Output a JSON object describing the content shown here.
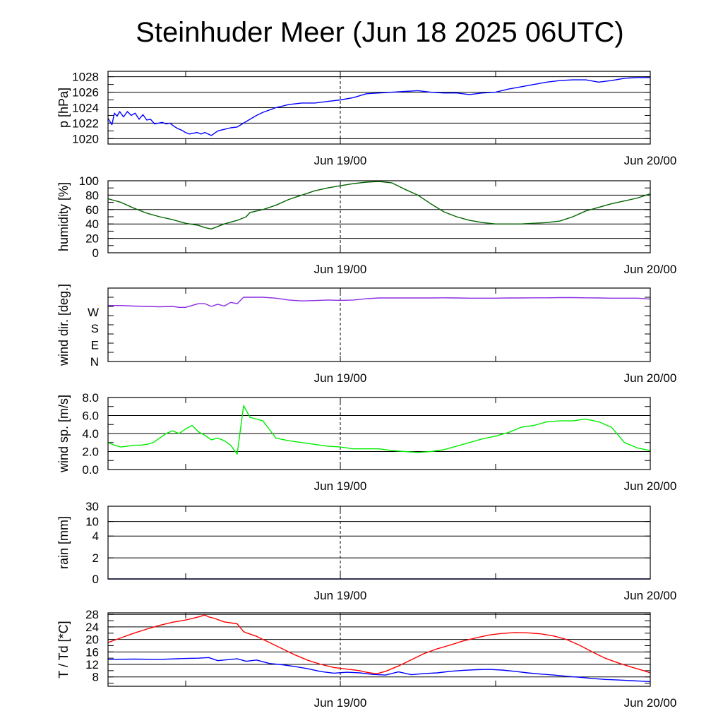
{
  "title": "Steinhuder Meer (Jun 18 2025 06UTC)",
  "x_axis": {
    "ticks": [
      "Jun 19/00",
      "Jun 20/00"
    ],
    "range_hours": [
      0,
      42
    ]
  },
  "chart_data": [
    {
      "type": "line",
      "ylabel": "p [hPa]",
      "ylim": [
        1019.3,
        1028.7
      ],
      "yticks": [
        "1020",
        "1022",
        "1024",
        "1026",
        "1028"
      ],
      "grid": true,
      "series": [
        {
          "color": "#0000ff",
          "x": [
            0,
            0.3,
            0.5,
            0.7,
            0.9,
            1.2,
            1.5,
            1.8,
            2.1,
            2.4,
            2.7,
            3.0,
            3.3,
            3.6,
            3.9,
            4.2,
            4.5,
            4.8,
            5.1,
            5.4,
            5.7,
            6.0,
            6.3,
            6.6,
            6.9,
            7.2,
            7.5,
            8,
            8.5,
            9,
            9.5,
            10,
            10.5,
            11,
            11.5,
            12,
            13,
            14,
            15,
            16,
            17,
            18,
            19,
            20,
            21,
            22,
            23,
            24,
            25,
            26,
            27,
            28,
            29,
            30,
            31,
            32,
            33,
            34,
            35,
            36,
            37,
            38,
            39,
            40,
            41,
            42
          ],
          "values": [
            1022.6,
            1021.8,
            1023.3,
            1022.9,
            1023.5,
            1022.8,
            1023.5,
            1023.0,
            1023.3,
            1022.5,
            1023.1,
            1022.4,
            1022.5,
            1021.9,
            1022.0,
            1022.1,
            1021.9,
            1022.0,
            1021.6,
            1021.3,
            1021.1,
            1020.8,
            1020.6,
            1020.7,
            1020.8,
            1020.6,
            1020.8,
            1020.4,
            1021.0,
            1021.2,
            1021.4,
            1021.5,
            1022.0,
            1022.5,
            1023.0,
            1023.4,
            1024.0,
            1024.4,
            1024.6,
            1024.6,
            1024.8,
            1025.0,
            1025.3,
            1025.8,
            1025.9,
            1026.0,
            1026.1,
            1026.2,
            1026.0,
            1025.9,
            1025.9,
            1025.7,
            1025.9,
            1026.0,
            1026.4,
            1026.7,
            1027.0,
            1027.3,
            1027.5,
            1027.6,
            1027.6,
            1027.3,
            1027.5,
            1027.8,
            1027.9,
            1027.9
          ]
        }
      ]
    },
    {
      "type": "line",
      "ylabel": "humidity [%]",
      "ylim": [
        0,
        100
      ],
      "yticks": [
        "0",
        "20",
        "40",
        "60",
        "80",
        "100"
      ],
      "grid": true,
      "series": [
        {
          "color": "#006400",
          "x": [
            0,
            1,
            2,
            3,
            4,
            5,
            6,
            7,
            7.5,
            8,
            9,
            10,
            10.7,
            11,
            12,
            13,
            14,
            15,
            16,
            17,
            18,
            19,
            20,
            21,
            22,
            23,
            24,
            25,
            26,
            27,
            28,
            29,
            30,
            31,
            32,
            33,
            34,
            35,
            36,
            37,
            38,
            39,
            40,
            41,
            42
          ],
          "values": [
            75,
            70,
            62,
            55,
            50,
            46,
            41,
            38,
            35,
            33,
            40,
            45,
            50,
            56,
            60,
            66,
            74,
            80,
            86,
            90,
            93,
            96,
            98,
            99,
            97,
            88,
            80,
            68,
            57,
            50,
            45,
            42,
            40,
            40,
            40,
            41,
            42,
            44,
            50,
            58,
            63,
            68,
            72,
            76,
            82
          ]
        }
      ]
    },
    {
      "type": "line",
      "ylabel": "wind dir. [deg.]",
      "ylim": [
        0,
        400
      ],
      "yticks": [
        "N",
        "E",
        "S",
        "W"
      ],
      "ytick_values": [
        0,
        90,
        180,
        270
      ],
      "grid": false,
      "series": [
        {
          "color": "#8a2be2",
          "x": [
            0,
            1,
            2,
            3,
            4,
            5,
            5.5,
            6,
            6.5,
            7,
            7.5,
            8,
            8.5,
            9,
            9.5,
            10,
            10.5,
            11,
            12,
            13,
            14,
            15,
            16,
            17,
            18,
            19,
            20,
            21,
            22,
            23,
            24,
            25,
            26,
            27,
            28,
            29,
            30,
            31,
            32,
            33,
            34,
            35,
            36,
            37,
            38,
            39,
            40,
            41,
            42
          ],
          "values": [
            305,
            305,
            302,
            300,
            298,
            300,
            295,
            295,
            305,
            315,
            315,
            300,
            312,
            302,
            322,
            315,
            350,
            350,
            350,
            345,
            335,
            330,
            332,
            335,
            333,
            335,
            342,
            346,
            346,
            346,
            346,
            346,
            347,
            346,
            345,
            345,
            345,
            346,
            346,
            347,
            347,
            348,
            348,
            347,
            346,
            345,
            345,
            345,
            340
          ]
        }
      ]
    },
    {
      "type": "line",
      "ylabel": "wind sp. [m/s]",
      "ylim": [
        0,
        8
      ],
      "yticks": [
        "0.0",
        "2.0",
        "4.0",
        "6.0",
        "8.0"
      ],
      "grid": true,
      "series": [
        {
          "color": "#00ee00",
          "x": [
            0,
            0.5,
            1,
            1.5,
            2,
            2.5,
            3,
            3.5,
            4,
            4.5,
            5,
            5.5,
            6,
            6.5,
            7,
            7.5,
            8,
            8.5,
            9,
            9.5,
            10,
            10.5,
            11,
            12,
            13,
            14,
            15,
            16,
            17,
            18,
            19,
            20,
            21,
            22,
            23,
            24,
            25,
            26,
            27,
            28,
            29,
            30,
            31,
            32,
            33,
            34,
            35,
            36,
            37,
            38,
            39,
            40,
            41,
            42
          ],
          "values": [
            3.0,
            2.7,
            2.5,
            2.6,
            2.7,
            2.7,
            2.8,
            3.0,
            3.5,
            4.0,
            4.3,
            4.0,
            4.5,
            4.9,
            4.2,
            3.8,
            3.3,
            3.5,
            3.2,
            2.7,
            1.7,
            7.1,
            5.8,
            5.4,
            3.5,
            3.2,
            3.0,
            2.8,
            2.6,
            2.5,
            2.3,
            2.3,
            2.3,
            2.1,
            2.0,
            1.9,
            2.0,
            2.2,
            2.6,
            3.0,
            3.4,
            3.7,
            4.1,
            4.7,
            4.9,
            5.3,
            5.4,
            5.4,
            5.6,
            5.3,
            4.7,
            3.0,
            2.4,
            2.1
          ]
        }
      ]
    },
    {
      "type": "line",
      "ylabel": "rain [mm]",
      "scale": "piecewise",
      "yticks": [
        "0",
        "2",
        "4",
        "10",
        "30"
      ],
      "ytick_values": [
        0,
        2,
        4,
        10,
        30
      ],
      "grid": true,
      "series": [
        {
          "color": "#00008b",
          "x": [
            0,
            42
          ],
          "values": [
            0,
            0
          ]
        }
      ]
    },
    {
      "type": "line",
      "ylabel": "T / Td [*C]",
      "ylim": [
        5,
        28.5
      ],
      "yticks": [
        "8",
        "12",
        "16",
        "20",
        "24",
        "28"
      ],
      "grid": true,
      "series": [
        {
          "color": "#ff0000",
          "x": [
            0,
            1,
            2,
            3,
            4,
            5,
            6,
            7,
            7.5,
            7.8,
            8.2,
            9,
            10,
            10.5,
            10.8,
            11.5,
            12.5,
            13.5,
            14.5,
            15.5,
            16.5,
            17.5,
            18.5,
            19.5,
            20,
            20.8,
            21.5,
            22.5,
            23.5,
            24.5,
            25.5,
            26.5,
            27.5,
            28.5,
            29.5,
            30.5,
            31.5,
            32.5,
            33.5,
            34.5,
            35.5,
            36.5,
            37.5,
            38.5,
            39.5,
            40.5,
            41.5,
            42
          ],
          "values": [
            19.0,
            20.5,
            22.0,
            23.3,
            24.5,
            25.5,
            26.2,
            27.2,
            27.8,
            27.2,
            26.8,
            25.6,
            25.0,
            22.5,
            22.0,
            21.0,
            19.0,
            17.0,
            15.0,
            13.3,
            12.0,
            11.0,
            10.5,
            10.0,
            9.5,
            9.0,
            9.8,
            11.5,
            13.5,
            15.5,
            17.0,
            18.2,
            19.5,
            20.5,
            21.4,
            21.9,
            22.2,
            22.1,
            21.8,
            21.1,
            20.0,
            18.2,
            16.0,
            14.0,
            12.5,
            11.2,
            10.0,
            9.3
          ]
        },
        {
          "color": "#0000ff",
          "x": [
            0,
            2,
            4,
            6,
            7,
            7.8,
            8.5,
            10,
            10.7,
            11.5,
            12.5,
            13.5,
            14.5,
            15.5,
            16.5,
            17.5,
            18.5,
            19.5,
            20.5,
            21.5,
            22.5,
            23.5,
            24.5,
            25.5,
            26.5,
            27.5,
            28.5,
            29.5,
            30.5,
            31.5,
            32.5,
            33.5,
            34.5,
            35.5,
            36.5,
            37.5,
            38.5,
            39.5,
            40.5,
            41.5,
            42
          ],
          "values": [
            13.6,
            13.7,
            13.6,
            13.9,
            14.0,
            14.2,
            13.2,
            13.8,
            13.0,
            13.4,
            12.3,
            11.9,
            11.3,
            10.6,
            9.7,
            9.2,
            9.5,
            9.3,
            8.8,
            8.6,
            9.6,
            8.7,
            9.1,
            9.3,
            9.8,
            10.1,
            10.3,
            10.4,
            10.2,
            9.8,
            9.3,
            8.9,
            8.6,
            8.2,
            7.9,
            7.5,
            7.2,
            7.0,
            6.8,
            6.6,
            6.5
          ]
        }
      ]
    }
  ]
}
